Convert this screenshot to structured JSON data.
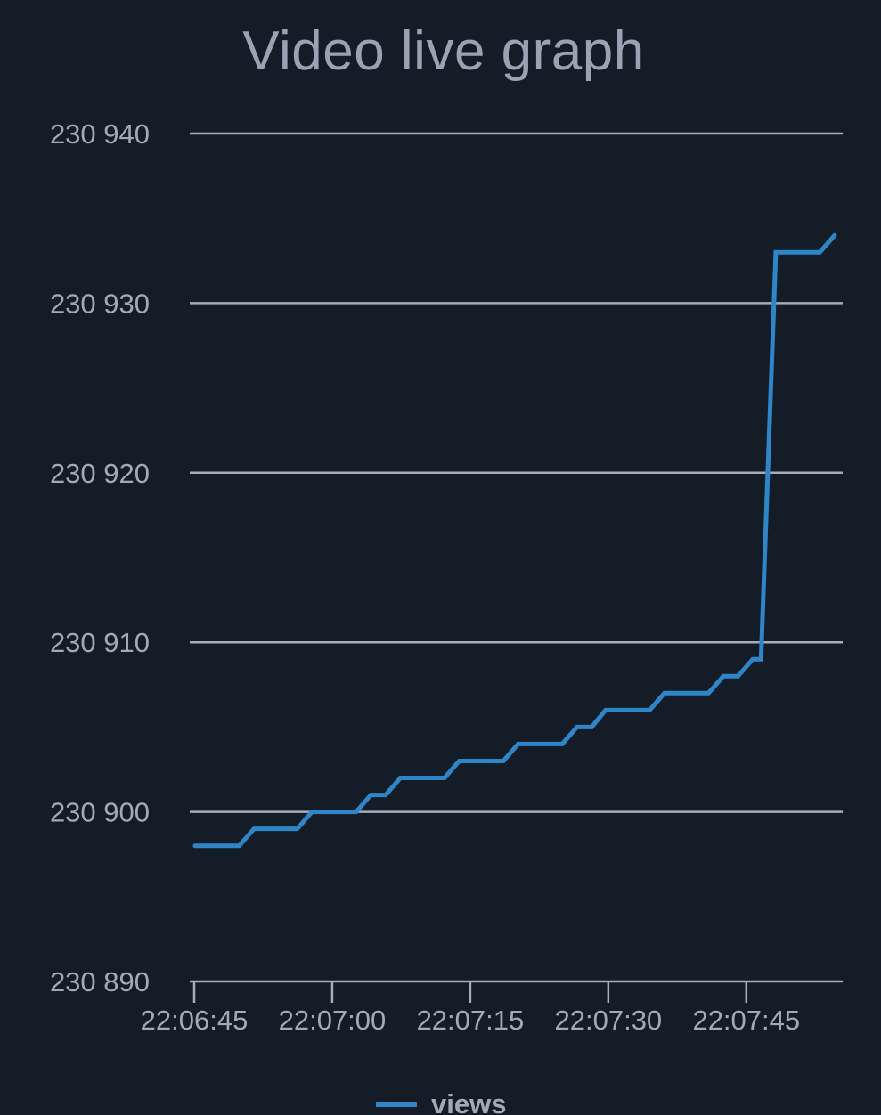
{
  "chart_data": {
    "type": "line",
    "title": "Video live graph",
    "xlabel": "",
    "ylabel": "",
    "ylim": [
      230890,
      230940
    ],
    "y_ticks": [
      230890,
      230900,
      230910,
      230920,
      230930,
      230940
    ],
    "y_tick_labels": [
      "230 890",
      "230 900",
      "230 910",
      "230 920",
      "230 930",
      "230 940"
    ],
    "x_ticks": [
      0,
      15,
      30,
      45,
      60
    ],
    "x_tick_labels": [
      "22:06:45",
      "22:07:00",
      "22:07:15",
      "22:07:30",
      "22:07:45"
    ],
    "grid": "horizontal",
    "legend_position": "bottom",
    "line_color": "#2e86c8",
    "series": [
      {
        "name": "views",
        "x": [
          0.1,
          4.9,
          6.5,
          11.2,
          12.8,
          17.6,
          19.2,
          20.8,
          22.4,
          27.2,
          28.8,
          33.6,
          35.2,
          40.0,
          41.6,
          43.2,
          44.7,
          49.5,
          51.1,
          55.9,
          57.5,
          59.1,
          60.7,
          61.6,
          63.2,
          68.0,
          69.6
        ],
        "y": [
          230898,
          230898,
          230899,
          230899,
          230900,
          230900,
          230901,
          230901,
          230902,
          230902,
          230903,
          230903,
          230904,
          230904,
          230905,
          230905,
          230906,
          230906,
          230907,
          230907,
          230908,
          230908,
          230909,
          230909,
          230933,
          230933,
          230934
        ]
      }
    ]
  }
}
